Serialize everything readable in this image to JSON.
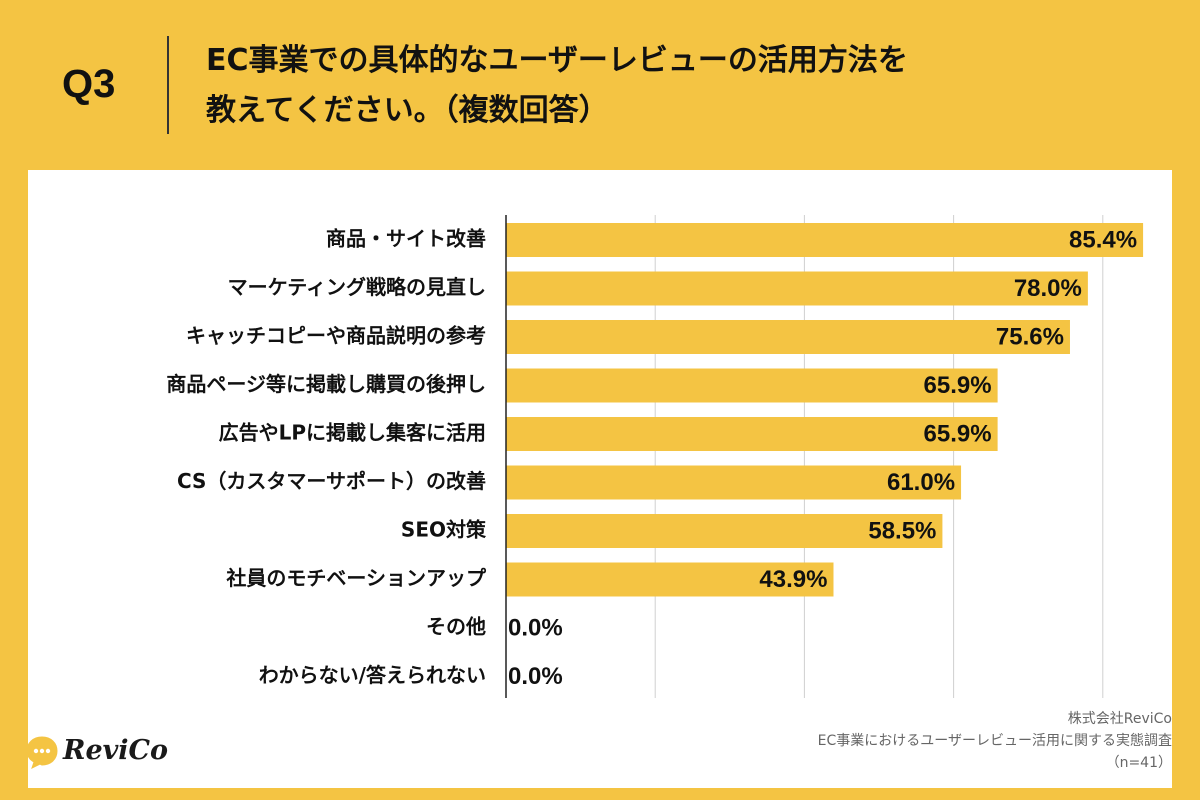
{
  "header": {
    "q_label": "Q3",
    "title": "EC事業での具体的なユーザーレビューの活用方法を\n教えてください。（複数回答）"
  },
  "colors": {
    "background": "#f4c443",
    "bar": "#f4c443",
    "panel": "#ffffff",
    "grid": "#d0d0d0",
    "axis": "#222222"
  },
  "chart_data": {
    "type": "bar",
    "orientation": "horizontal",
    "categories": [
      "商品・サイト改善",
      "マーケティング戦略の見直し",
      "キャッチコピーや商品説明の参考",
      "商品ページ等に掲載し購買の後押し",
      "広告やLPに掲載し集客に活用",
      "CS（カスタマーサポート）の改善",
      "SEO対策",
      "社員のモチベーションアップ",
      "その他",
      "わからない/答えられない"
    ],
    "values": [
      85.4,
      78.0,
      75.6,
      65.9,
      65.9,
      61.0,
      58.5,
      43.9,
      0.0,
      0.0
    ],
    "value_labels": [
      "85.4%",
      "78.0%",
      "75.6%",
      "65.9%",
      "65.9%",
      "61.0%",
      "58.5%",
      "43.9%",
      "0.0%",
      "0.0%"
    ],
    "xlim": [
      0,
      100
    ],
    "x_gridlines": [
      20,
      40,
      60,
      80
    ],
    "grid": true,
    "legend": "none"
  },
  "logo": {
    "text": "ReviCo",
    "icon": "speech-bubble-dots-icon"
  },
  "source": {
    "company": "株式会社ReviCo",
    "survey": "EC事業におけるユーザーレビュー活用に関する実態調査",
    "sample": "（n=41）"
  }
}
